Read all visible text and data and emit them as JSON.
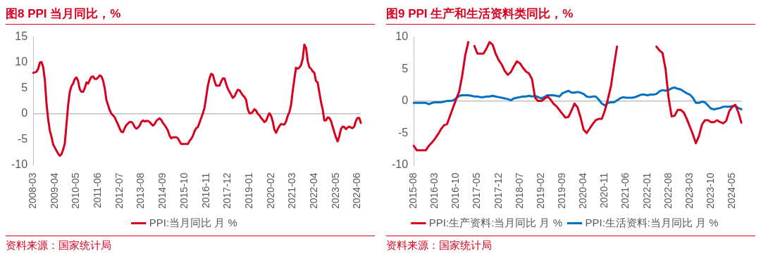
{
  "chart_data": [
    {
      "type": "line",
      "title": "图8  PPI 当月同比，%",
      "annotations": [
        "资料来源：国家统计局"
      ],
      "categories": [
        "2008-03",
        null,
        null,
        null,
        null,
        null,
        null,
        null,
        null,
        null,
        null,
        null,
        null,
        "2009-04",
        null,
        null,
        null,
        null,
        null,
        null,
        null,
        null,
        null,
        null,
        null,
        null,
        "2010-05",
        null,
        null,
        null,
        null,
        null,
        null,
        null,
        null,
        null,
        null,
        null,
        null,
        "2011-06",
        null,
        null,
        null,
        null,
        null,
        null,
        null,
        null,
        null,
        null,
        null,
        null,
        "2012-07",
        null,
        null,
        null,
        null,
        null,
        null,
        null,
        null,
        null,
        null,
        null,
        null,
        "2013-08",
        null,
        null,
        null,
        null,
        null,
        null,
        null,
        null,
        null,
        null,
        null,
        null,
        "2014-09",
        null,
        null,
        null,
        null,
        null,
        null,
        null,
        null,
        null,
        null,
        null,
        null,
        "2015-10",
        null,
        null,
        null,
        null,
        null,
        null,
        null,
        null,
        null,
        null,
        null,
        null,
        "2016-11",
        null,
        null,
        null,
        null,
        null,
        null,
        null,
        null,
        null,
        null,
        null,
        null,
        "2017-12",
        null,
        null,
        null,
        null,
        null,
        null,
        null,
        null,
        null,
        null,
        null,
        null,
        "2019-01",
        null,
        null,
        null,
        null,
        null,
        null,
        null,
        null,
        null,
        null,
        null,
        null,
        "2020-02",
        null,
        null,
        null,
        null,
        null,
        null,
        null,
        null,
        null,
        null,
        null,
        null,
        "2021-03",
        null,
        null,
        null,
        null,
        null,
        null,
        null,
        null,
        null,
        null,
        null,
        null,
        "2022-04",
        null,
        null,
        null,
        null,
        null,
        null,
        null,
        null,
        null,
        null,
        null,
        null,
        "2023-05",
        null,
        null,
        null,
        null,
        null,
        null,
        null,
        null,
        null,
        null,
        null,
        null,
        "2024-06",
        null,
        null
      ],
      "series": [
        {
          "name": "PPI:当月同比 月 %",
          "color": "#d7001f",
          "values": [
            8.0,
            8.1,
            8.2,
            8.8,
            10.0,
            10.1,
            9.1,
            6.6,
            2.0,
            -1.1,
            -3.3,
            -4.5,
            -6.0,
            -6.6,
            -7.2,
            -7.8,
            -8.2,
            -7.9,
            -7.0,
            -5.8,
            -2.1,
            1.7,
            4.3,
            5.4,
            5.9,
            6.8,
            7.1,
            6.4,
            4.8,
            4.3,
            4.3,
            5.0,
            6.1,
            5.9,
            6.6,
            7.2,
            7.3,
            6.8,
            6.8,
            7.1,
            7.5,
            7.3,
            6.5,
            5.0,
            2.7,
            1.7,
            0.7,
            0.0,
            -0.3,
            -0.7,
            -1.4,
            -2.1,
            -2.9,
            -3.5,
            -3.6,
            -2.8,
            -2.2,
            -1.9,
            -1.6,
            -1.6,
            -1.9,
            -2.6,
            -2.9,
            -2.7,
            -2.3,
            -1.6,
            -1.3,
            -1.5,
            -1.4,
            -1.4,
            -1.6,
            -2.0,
            -2.3,
            -2.0,
            -1.4,
            -1.1,
            -0.9,
            -1.2,
            -1.8,
            -2.2,
            -2.7,
            -3.3,
            -4.3,
            -4.8,
            -4.6,
            -4.6,
            -4.6,
            -4.8,
            -5.4,
            -5.9,
            -5.9,
            -5.9,
            -5.9,
            -5.9,
            -5.3,
            -4.9,
            -4.3,
            -3.4,
            -2.8,
            -2.6,
            -1.7,
            -0.8,
            0.1,
            1.2,
            3.3,
            5.5,
            6.9,
            7.8,
            7.6,
            6.4,
            5.5,
            5.5,
            5.5,
            6.3,
            6.9,
            6.9,
            5.8,
            4.9,
            4.3,
            3.7,
            3.1,
            3.4,
            4.1,
            4.7,
            4.6,
            4.1,
            3.6,
            3.3,
            2.7,
            0.9,
            0.1,
            0.1,
            0.4,
            0.9,
            0.6,
            0.0,
            -0.3,
            -0.8,
            -1.2,
            -1.6,
            -1.4,
            -0.5,
            0.1,
            -0.4,
            -1.5,
            -3.1,
            -3.7,
            -3.0,
            -2.4,
            -2.0,
            -2.1,
            -2.1,
            -1.5,
            -0.4,
            0.3,
            1.7,
            4.4,
            6.8,
            9.0,
            8.8,
            9.0,
            9.5,
            10.7,
            13.5,
            12.9,
            10.3,
            9.1,
            8.8,
            8.3,
            8.0,
            6.4,
            6.1,
            4.2,
            2.3,
            0.9,
            -1.3,
            -1.3,
            -0.7,
            -0.8,
            -1.4,
            -2.5,
            -3.6,
            -4.6,
            -5.4,
            -4.4,
            -3.0,
            -2.5,
            -2.6,
            -3.0,
            -2.7,
            -2.5,
            -2.7,
            -2.8,
            -2.5,
            -1.4,
            -0.8,
            -0.8,
            -1.8
          ]
        }
      ],
      "ylim": [
        -10,
        15
      ],
      "yticks": [
        -10,
        -5,
        0,
        5,
        10,
        15
      ],
      "legend": "bottom"
    },
    {
      "type": "line",
      "title": "图9  PPI 生产和生活资料类同比，%",
      "annotations": [
        "资料来源：国家统计局"
      ],
      "categories": [
        "2015-08",
        null,
        null,
        null,
        null,
        null,
        null,
        "2016-03",
        null,
        null,
        null,
        null,
        null,
        null,
        "2016-10",
        null,
        null,
        null,
        null,
        null,
        null,
        "2017-05",
        null,
        null,
        null,
        null,
        null,
        null,
        "2017-12",
        null,
        null,
        null,
        null,
        null,
        null,
        "2018-07",
        null,
        null,
        null,
        null,
        null,
        null,
        "2019-02",
        null,
        null,
        null,
        null,
        null,
        null,
        "2019-09",
        null,
        null,
        null,
        null,
        null,
        null,
        "2020-04",
        null,
        null,
        null,
        null,
        null,
        null,
        "2020-11",
        null,
        null,
        null,
        null,
        null,
        null,
        "2021-06",
        null,
        null,
        null,
        null,
        null,
        null,
        "2022-01",
        null,
        null,
        null,
        null,
        null,
        null,
        "2022-08",
        null,
        null,
        null,
        null,
        null,
        null,
        "2023-03",
        null,
        null,
        null,
        null,
        null,
        null,
        "2023-10",
        null,
        null,
        null,
        null,
        null,
        null,
        "2024-05",
        null,
        null,
        null
      ],
      "series": [
        {
          "name": "PPI:生产资料:当月同比 月 %",
          "color": "#d7001f",
          "values": [
            -7.0,
            -7.7,
            -7.7,
            -7.7,
            -7.7,
            -7.0,
            -6.5,
            -5.9,
            -5.2,
            -4.4,
            -3.8,
            -3.6,
            -2.3,
            -1.0,
            0.3,
            1.5,
            4.0,
            7.2,
            9.2,
            null,
            8.6,
            7.4,
            7.4,
            7.4,
            8.2,
            9.2,
            8.8,
            7.4,
            6.4,
            5.7,
            4.7,
            4.1,
            4.5,
            5.4,
            6.2,
            5.9,
            5.2,
            4.6,
            4.3,
            3.4,
            0.5,
            0.0,
            0.0,
            0.3,
            0.7,
            0.3,
            -0.4,
            -0.8,
            -1.4,
            -2.0,
            -2.6,
            -2.5,
            -1.5,
            -0.4,
            -1.0,
            -2.6,
            -4.5,
            -5.0,
            -4.3,
            -3.6,
            -3.0,
            -2.8,
            -2.8,
            -1.5,
            0.3,
            2.3,
            5.5,
            8.5,
            null,
            null,
            null,
            null,
            null,
            null,
            null,
            null,
            null,
            null,
            null,
            null,
            8.5,
            7.9,
            7.5,
            5.0,
            0.5,
            -2.4,
            -2.3,
            -1.4,
            -1.4,
            -1.8,
            -2.8,
            -4.0,
            -5.2,
            -6.6,
            -5.5,
            -3.7,
            -3.0,
            -3.0,
            -3.3,
            -3.3,
            -3.0,
            -3.3,
            -3.5,
            -3.1,
            -1.6,
            -0.9,
            -0.6,
            -1.8,
            -3.4
          ]
        },
        {
          "name": "PPI:生活资料:当月同比 月 %",
          "color": "#0070c0",
          "values": [
            -0.3,
            -0.3,
            -0.3,
            -0.3,
            -0.3,
            -0.5,
            -0.3,
            -0.2,
            -0.2,
            -0.2,
            -0.1,
            0.0,
            0.0,
            0.1,
            0.4,
            0.8,
            0.9,
            0.9,
            0.9,
            0.8,
            0.7,
            0.7,
            0.6,
            0.6,
            0.7,
            0.7,
            0.8,
            0.7,
            0.6,
            0.5,
            0.4,
            0.3,
            0.1,
            0.4,
            0.5,
            0.6,
            0.7,
            0.7,
            0.8,
            0.7,
            0.8,
            0.6,
            0.4,
            0.6,
            0.9,
            0.9,
            0.9,
            0.8,
            0.7,
            1.2,
            1.4,
            1.6,
            1.3,
            1.3,
            1.4,
            1.3,
            1.1,
            0.7,
            0.6,
            0.7,
            0.7,
            0.2,
            -0.4,
            -0.7,
            -0.3,
            -0.2,
            -0.2,
            0.1,
            0.4,
            0.6,
            0.5,
            0.5,
            0.5,
            0.6,
            0.8,
            1.0,
            1.0,
            0.9,
            1.0,
            1.0,
            1.1,
            1.5,
            1.7,
            1.6,
            1.7,
            2.0,
            2.1,
            1.9,
            1.8,
            1.5,
            1.2,
            1.0,
            0.5,
            -0.3,
            -0.3,
            -0.1,
            -0.2,
            -0.7,
            -1.2,
            -1.3,
            -1.2,
            -1.1,
            -0.9,
            -0.9,
            -0.9,
            -0.8,
            -0.8,
            -1.1,
            -1.3
          ]
        }
      ],
      "ylim": [
        -10,
        10
      ],
      "yticks": [
        -10,
        -5,
        0,
        5,
        10
      ],
      "legend": "bottom"
    }
  ]
}
